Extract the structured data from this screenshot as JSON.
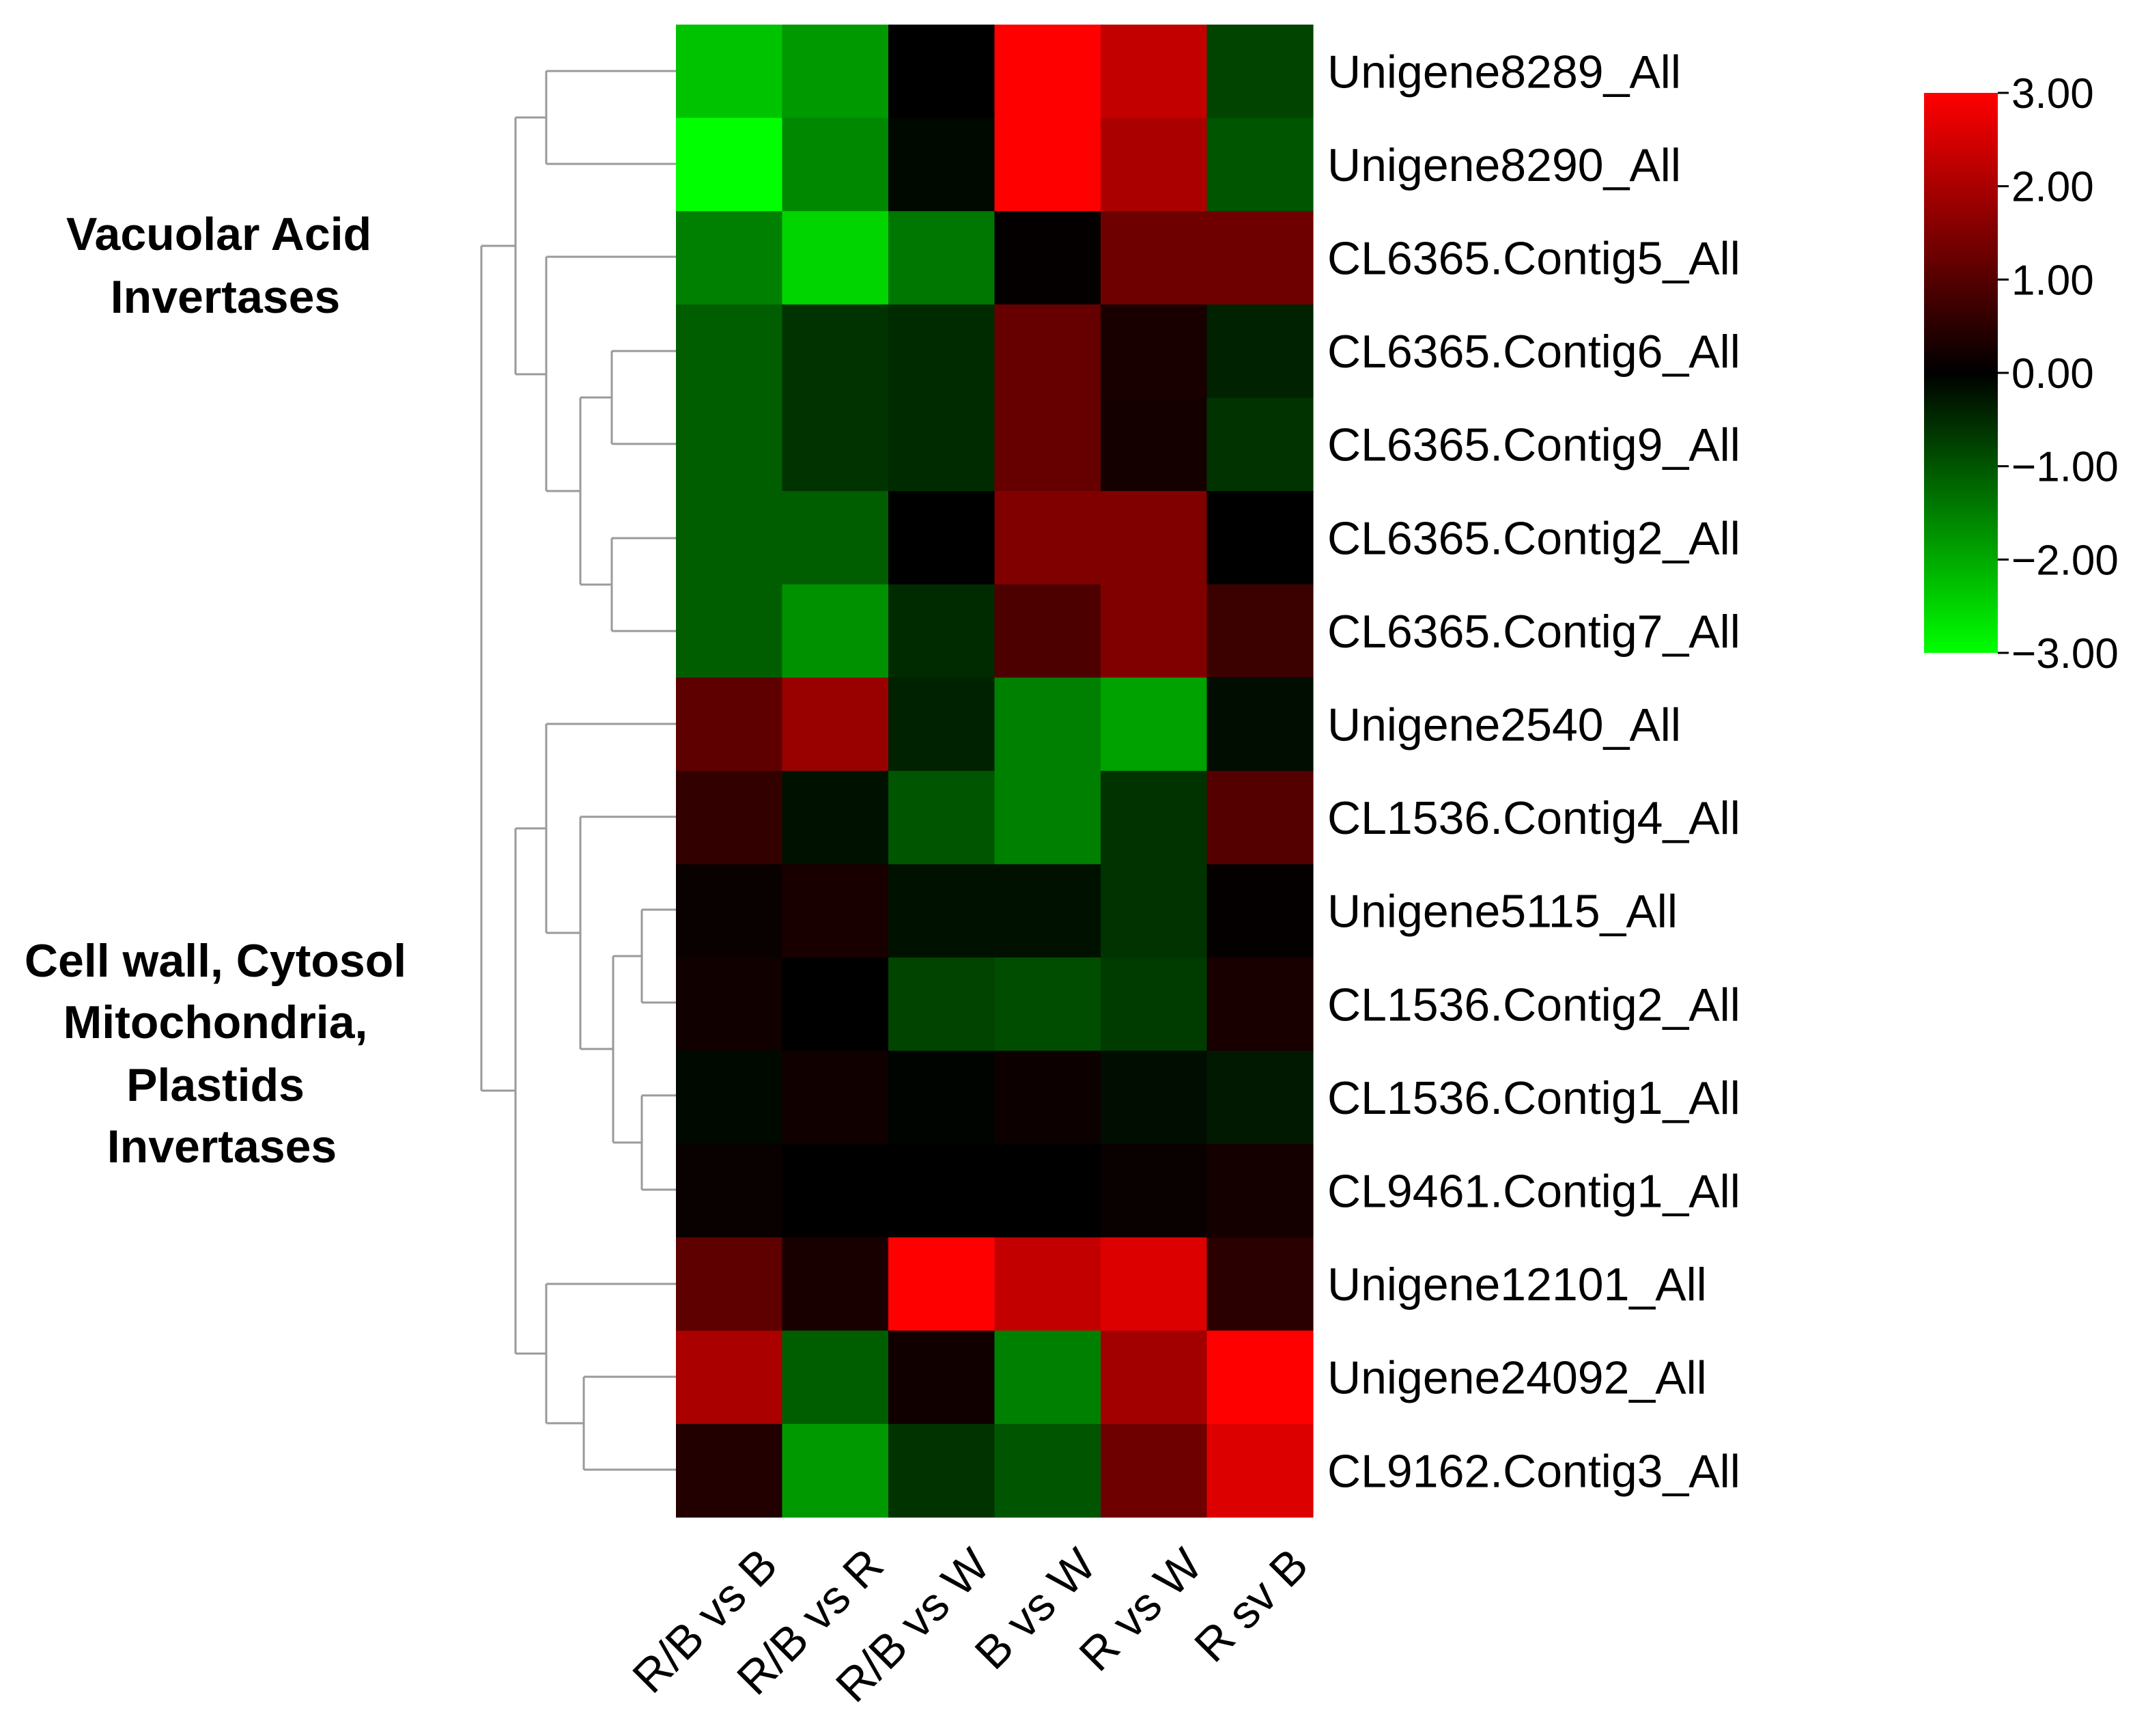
{
  "chart_data": {
    "type": "heatmap",
    "columns": [
      "R/B vs B",
      "R/B vs R",
      "R/B vs W",
      "B vs W",
      "R vs W",
      "R sv B"
    ],
    "rows": [
      "Unigene8289_All",
      "Unigene8290_All",
      "CL6365.Contig5_All",
      "CL6365.Contig6_All",
      "CL6365.Contig9_All",
      "CL6365.Contig2_All",
      "CL6365.Contig7_All",
      "Unigene2540_All",
      "CL1536.Contig4_All",
      "Unigene5115_All",
      "CL1536.Contig2_All",
      "CL1536.Contig1_All",
      "CL9461.Contig1_All",
      "Unigene12101_All",
      "Unigene24092_All",
      "CL9162.Contig3_All"
    ],
    "values": [
      [
        -2.3,
        -1.8,
        0.0,
        3.0,
        2.3,
        -0.8
      ],
      [
        -3.0,
        -1.6,
        -0.1,
        3.0,
        2.0,
        -1.0
      ],
      [
        -1.5,
        -2.5,
        -1.4,
        0.05,
        1.3,
        1.3
      ],
      [
        -1.1,
        -0.6,
        -0.5,
        1.2,
        0.3,
        -0.4
      ],
      [
        -1.1,
        -0.6,
        -0.5,
        1.2,
        0.25,
        -0.6
      ],
      [
        -1.1,
        -1.1,
        0.0,
        1.5,
        1.5,
        0.0
      ],
      [
        -1.1,
        -1.7,
        -0.5,
        0.9,
        1.5,
        0.7
      ],
      [
        1.1,
        1.8,
        -0.4,
        -1.5,
        -1.9,
        -0.15
      ],
      [
        0.6,
        -0.2,
        -1.0,
        -1.5,
        -0.6,
        1.0
      ],
      [
        0.1,
        0.3,
        -0.2,
        -0.2,
        -0.6,
        0.05
      ],
      [
        0.2,
        0.0,
        -0.8,
        -0.9,
        -0.7,
        0.3
      ],
      [
        -0.1,
        0.2,
        -0.05,
        0.15,
        -0.15,
        -0.3
      ],
      [
        0.1,
        0.0,
        0.0,
        0.0,
        0.1,
        0.25
      ],
      [
        1.1,
        0.3,
        3.0,
        2.3,
        2.6,
        0.5
      ],
      [
        2.0,
        -1.1,
        0.2,
        -1.5,
        1.9,
        3.0
      ],
      [
        0.4,
        -1.8,
        -0.6,
        -1.0,
        1.3,
        2.6
      ]
    ],
    "color_scale": {
      "min": -3.0,
      "max": 3.0,
      "low_color": "#00ff00",
      "mid_color": "#000000",
      "high_color": "#ff0000",
      "ticks": [
        "3.00",
        "2.00",
        "1.00",
        "0.00",
        "−1.00",
        "−2.00",
        "−3.00"
      ]
    },
    "row_groups": [
      {
        "label_lines": [
          "Vacuolar Acid",
          "Invertases"
        ],
        "rows": [
          0,
          6
        ]
      },
      {
        "label_lines": [
          "Cell wall, Cytosol",
          "Mitochondria,",
          "Plastids",
          "Invertases"
        ],
        "rows": [
          7,
          15
        ]
      }
    ],
    "dendrogram_branch_order": "rows"
  }
}
